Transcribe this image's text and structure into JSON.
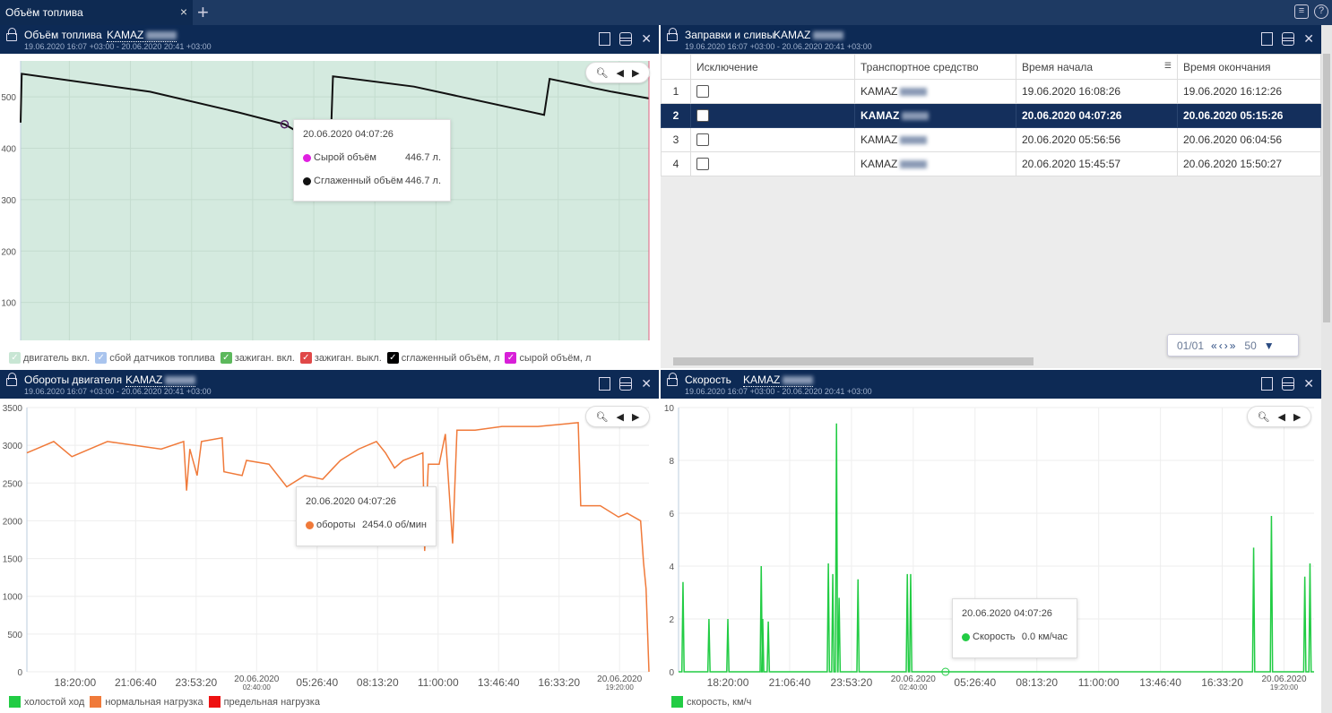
{
  "tabbar": {
    "active_tab": "Объём топлива",
    "close": "×",
    "add": "+"
  },
  "panels": {
    "fuel": {
      "title": "Объём топлива",
      "vehicle": "KAMAZ",
      "range": "19.06.2020 16:07 +03:00 - 20.06.2020 20:41 +03:00",
      "tooltip": {
        "time": "20.06.2020  04:07:26",
        "rows": [
          {
            "label": "Сырой объём",
            "value": "446.7 л.",
            "color": "#e020e0"
          },
          {
            "label": "Сглаженный объём",
            "value": "446.7 л.",
            "color": "#111111"
          }
        ]
      },
      "legend": [
        {
          "label": "двигатель вкл.",
          "color": "#c8e6d4"
        },
        {
          "label": "сбой датчиков топлива",
          "color": "#a9c4ee"
        },
        {
          "label": "зажиган. вкл.",
          "color": "#5cb85c"
        },
        {
          "label": "зажиган. выкл.",
          "color": "#e04848"
        },
        {
          "label": "сглаженный объём, л",
          "color": "#000000"
        },
        {
          "label": "сырой объём, л",
          "color": "#d81fd8"
        }
      ]
    },
    "refuel": {
      "title": "Заправки и сливы",
      "vehicle": "KAMAZ",
      "range": "19.06.2020 16:07 +03:00 - 20.06.2020 20:41 +03:00",
      "columns": [
        "",
        "Исключение",
        "Транспортное средство",
        "Время начала",
        "Время окончания"
      ],
      "rows": [
        {
          "n": "1",
          "vehicle": "KAMAZ",
          "start": "19.06.2020 16:08:26",
          "end": "19.06.2020 16:12:26",
          "selected": false
        },
        {
          "n": "2",
          "vehicle": "KAMAZ",
          "start": "20.06.2020 04:07:26",
          "end": "20.06.2020 05:15:26",
          "selected": true
        },
        {
          "n": "3",
          "vehicle": "KAMAZ",
          "start": "20.06.2020 05:56:56",
          "end": "20.06.2020 06:04:56",
          "selected": false
        },
        {
          "n": "4",
          "vehicle": "KAMAZ",
          "start": "20.06.2020 15:45:57",
          "end": "20.06.2020 15:50:27",
          "selected": false
        }
      ],
      "pager": {
        "page": "01/01",
        "page_size": "50"
      }
    },
    "rpm": {
      "title": "Обороты двигателя",
      "vehicle": "KAMAZ",
      "range": "19.06.2020 16:07 +03:00 - 20.06.2020 20:41 +03:00",
      "tooltip": {
        "time": "20.06.2020  04:07:26",
        "rows": [
          {
            "label": "обороты",
            "value": "2454.0 об/мин",
            "color": "#f07a3a"
          }
        ]
      },
      "legend": [
        {
          "label": "холостой ход",
          "color": "#22cc44"
        },
        {
          "label": "нормальная нагрузка",
          "color": "#f07a3a"
        },
        {
          "label": "предельная нагрузка",
          "color": "#ee1111"
        }
      ]
    },
    "speed": {
      "title": "Скорость",
      "vehicle": "KAMAZ",
      "range": "19.06.2020 16:07 +03:00 - 20.06.2020 20:41 +03:00",
      "tooltip": {
        "time": "20.06.2020  04:07:26",
        "rows": [
          {
            "label": "Скорость",
            "value": "0.0 км/час",
            "color": "#22cc44"
          }
        ]
      },
      "legend": [
        {
          "label": "скорость, км/ч",
          "color": "#22cc44"
        }
      ]
    }
  },
  "chart_data": [
    {
      "type": "line",
      "ylim": [
        0,
        570
      ],
      "yticks": [
        0,
        100,
        200,
        300,
        400,
        500
      ],
      "xlim": [
        "2020-06-19 16:07",
        "2020-06-20 20:41"
      ],
      "xticks": [
        {
          "t": "2020-06-19 18:20",
          "label": "18:20:00"
        },
        {
          "t": "2020-06-19 21:06:40",
          "label": "21:06:40"
        },
        {
          "t": "2020-06-19 23:53:20",
          "label": "23:53:20"
        },
        {
          "t": "2020-06-20 02:40",
          "label": "20.06.2020",
          "sub": "02:40:00"
        },
        {
          "t": "2020-06-20 05:26:40",
          "label": "05:26:40"
        },
        {
          "t": "2020-06-20 08:13:20",
          "label": "08:13:20"
        },
        {
          "t": "2020-06-20 11:00",
          "label": "11:00:00"
        },
        {
          "t": "2020-06-20 13:46:40",
          "label": "13:46:40"
        },
        {
          "t": "2020-06-20 16:33:20",
          "label": "16:33:20"
        },
        {
          "t": "2020-06-20 19:20",
          "label": "20.06.2020",
          "sub": "19:20:00"
        }
      ],
      "background_color": "#d4eadf",
      "line_color": "#111111",
      "points": [
        [
          "2020-06-19 16:07",
          450
        ],
        [
          "2020-06-19 16:10",
          545
        ],
        [
          "2020-06-19 22:00",
          510
        ],
        [
          "2020-06-20 02:00",
          470
        ],
        [
          "2020-06-20 04:07",
          446.7
        ],
        [
          "2020-06-20 06:12",
          395
        ],
        [
          "2020-06-20 06:19",
          540
        ],
        [
          "2020-06-20 10:00",
          520
        ],
        [
          "2020-06-20 15:55",
          465
        ],
        [
          "2020-06-20 16:10",
          535
        ],
        [
          "2020-06-20 19:00",
          510
        ],
        [
          "2020-06-20 20:41",
          497
        ]
      ]
    },
    {
      "type": "line",
      "ylim": [
        0,
        3500
      ],
      "yticks": [
        0,
        500,
        1000,
        1500,
        2000,
        2500,
        3000,
        3500
      ],
      "xlim": [
        "2020-06-19 16:07",
        "2020-06-20 20:41"
      ],
      "line_color": "#f07a3a",
      "points": [
        [
          "2020-06-19 16:07",
          2900
        ],
        [
          "2020-06-19 16:32",
          2950
        ],
        [
          "2020-06-19 17:21",
          3050
        ],
        [
          "2020-06-19 18:11",
          2850
        ],
        [
          "2020-06-19 19:00",
          2950
        ],
        [
          "2020-06-19 19:49",
          3050
        ],
        [
          "2020-06-19 21:03",
          3000
        ],
        [
          "2020-06-19 22:17",
          2950
        ],
        [
          "2020-06-19 23:19",
          3050
        ],
        [
          "2020-06-19 23:27",
          2400
        ],
        [
          "2020-06-19 23:36",
          2950
        ],
        [
          "2020-06-19 23:56",
          2600
        ],
        [
          "2020-06-20 00:08",
          3050
        ],
        [
          "2020-06-20 01:05",
          3100
        ],
        [
          "2020-06-20 01:10",
          2650
        ],
        [
          "2020-06-20 02:00",
          2600
        ],
        [
          "2020-06-20 02:12",
          2800
        ],
        [
          "2020-06-20 03:14",
          2750
        ],
        [
          "2020-06-20 04:03",
          2450
        ],
        [
          "2020-06-20 04:53",
          2600
        ],
        [
          "2020-06-20 05:42",
          2550
        ],
        [
          "2020-06-20 06:11",
          2700
        ],
        [
          "2020-06-20 06:31",
          2800
        ],
        [
          "2020-06-20 07:21",
          2950
        ],
        [
          "2020-06-20 08:10",
          3050
        ],
        [
          "2020-06-20 08:35",
          2900
        ],
        [
          "2020-06-20 09:00",
          2700
        ],
        [
          "2020-06-20 09:24",
          2800
        ],
        [
          "2020-06-20 10:18",
          2900
        ],
        [
          "2020-06-20 10:23",
          1600
        ],
        [
          "2020-06-20 10:33",
          2750
        ],
        [
          "2020-06-20 11:03",
          2750
        ],
        [
          "2020-06-20 11:20",
          3150
        ],
        [
          "2020-06-20 11:40",
          1700
        ],
        [
          "2020-06-20 11:52",
          3200
        ],
        [
          "2020-06-20 12:42",
          3200
        ],
        [
          "2020-06-20 13:56",
          3250
        ],
        [
          "2020-06-20 15:35",
          3250
        ],
        [
          "2020-06-20 17:26",
          3300
        ],
        [
          "2020-06-20 17:33",
          2200
        ],
        [
          "2020-06-20 18:27",
          2200
        ],
        [
          "2020-06-20 19:17",
          2050
        ],
        [
          "2020-06-20 19:41",
          2100
        ],
        [
          "2020-06-20 20:18",
          2000
        ],
        [
          "2020-06-20 20:26",
          1450
        ],
        [
          "2020-06-20 20:33",
          1100
        ],
        [
          "2020-06-20 20:41",
          0
        ]
      ]
    },
    {
      "type": "line",
      "ylim": [
        0,
        10
      ],
      "yticks": [
        0,
        2,
        4,
        6,
        8,
        10
      ],
      "xlim": [
        "2020-06-19 16:07",
        "2020-06-20 20:41"
      ],
      "line_color": "#22cc44",
      "spikes": [
        [
          "2020-06-19 16:19",
          3.4
        ],
        [
          "2020-06-19 17:29",
          2
        ],
        [
          "2020-06-19 18:20",
          2
        ],
        [
          "2020-06-19 19:50",
          4
        ],
        [
          "2020-06-19 19:54",
          2
        ],
        [
          "2020-06-19 20:09",
          1.9
        ],
        [
          "2020-06-19 22:51",
          4.1
        ],
        [
          "2020-06-19 23:03",
          3.7
        ],
        [
          "2020-06-19 23:13",
          9.4
        ],
        [
          "2020-06-19 23:20",
          2.8
        ],
        [
          "2020-06-20 00:11",
          3.5
        ],
        [
          "2020-06-20 02:24",
          3.7
        ],
        [
          "2020-06-20 02:33",
          3.7
        ],
        [
          "2020-06-20 17:58",
          4.7
        ],
        [
          "2020-06-20 18:46",
          5.9
        ],
        [
          "2020-06-20 20:16",
          3.6
        ],
        [
          "2020-06-20 20:30",
          4.1
        ]
      ]
    }
  ]
}
